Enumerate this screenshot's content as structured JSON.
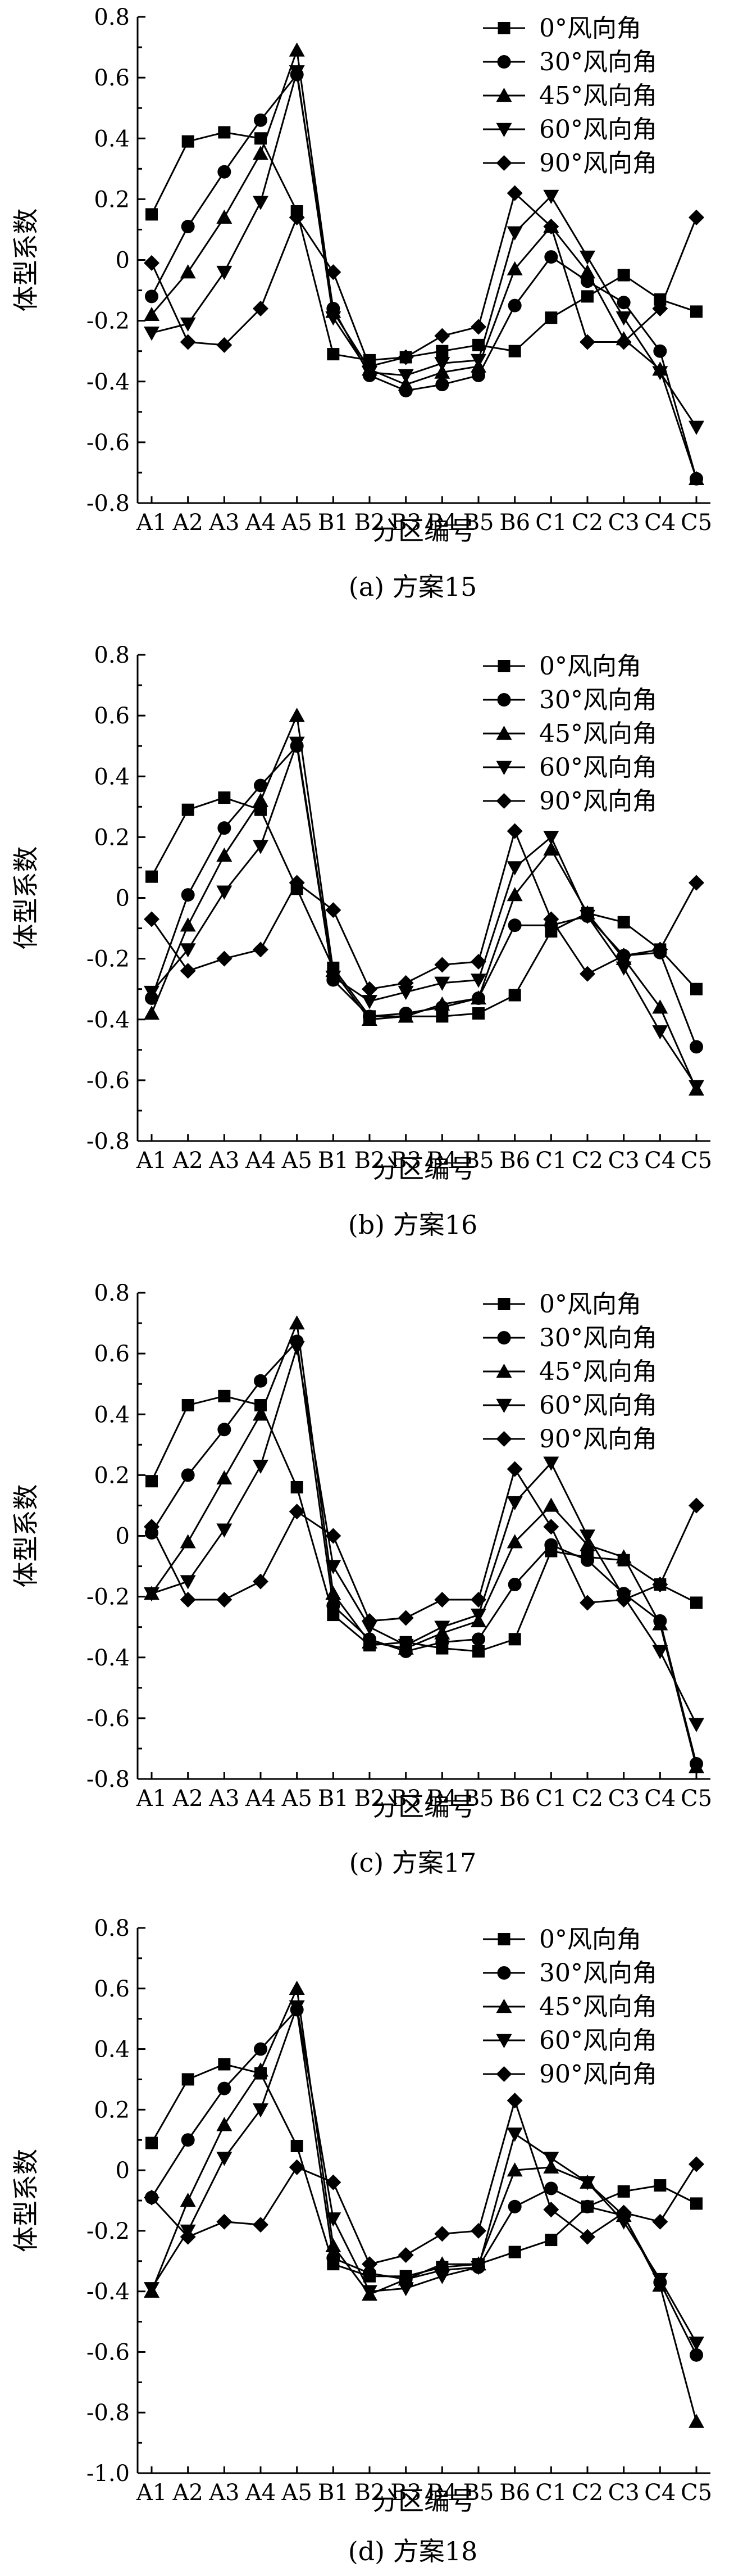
{
  "chart_data": [
    {
      "type": "line",
      "caption": "(a) 方案15",
      "xlabel": "分区编号",
      "ylabel": "体型系数",
      "ylim": [
        -0.8,
        0.8
      ],
      "yticks": [
        "0.8",
        "0.6",
        "0.4",
        "0.2",
        "0",
        "-0.2",
        "-0.4",
        "-0.6",
        "-0.8"
      ],
      "categories": [
        "A1",
        "A2",
        "A3",
        "A4",
        "A5",
        "B1",
        "B2",
        "B3",
        "B4",
        "B5",
        "B6",
        "C1",
        "C2",
        "C3",
        "C4",
        "C5"
      ],
      "legend_position": "top-right",
      "series": [
        {
          "name": "0°风向角",
          "marker": "square",
          "values": [
            0.15,
            0.39,
            0.42,
            0.4,
            0.16,
            -0.31,
            -0.33,
            -0.32,
            -0.3,
            -0.28,
            -0.3,
            -0.19,
            -0.12,
            -0.05,
            -0.13,
            -0.17
          ]
        },
        {
          "name": "30°风向角",
          "marker": "circle",
          "values": [
            -0.12,
            0.11,
            0.29,
            0.46,
            0.61,
            -0.16,
            -0.38,
            -0.43,
            -0.41,
            -0.38,
            -0.15,
            0.01,
            -0.07,
            -0.14,
            -0.3,
            -0.72
          ]
        },
        {
          "name": "45°风向角",
          "marker": "triangle-up",
          "values": [
            -0.18,
            -0.04,
            0.14,
            0.35,
            0.69,
            -0.17,
            -0.36,
            -0.41,
            -0.37,
            -0.35,
            -0.03,
            0.11,
            -0.04,
            -0.26,
            -0.36,
            -0.72
          ]
        },
        {
          "name": "60°风向角",
          "marker": "triangle-down",
          "values": [
            -0.24,
            -0.21,
            -0.04,
            0.19,
            0.62,
            -0.19,
            -0.37,
            -0.38,
            -0.34,
            -0.33,
            0.09,
            0.21,
            0.01,
            -0.19,
            -0.37,
            -0.55
          ]
        },
        {
          "name": "90°风向角",
          "marker": "diamond",
          "values": [
            -0.01,
            -0.27,
            -0.28,
            -0.16,
            0.14,
            -0.04,
            -0.35,
            -0.32,
            -0.25,
            -0.22,
            0.22,
            0.11,
            -0.27,
            -0.27,
            -0.16,
            0.14
          ]
        }
      ]
    },
    {
      "type": "line",
      "caption": "(b) 方案16",
      "xlabel": "分区编号",
      "ylabel": "体型系数",
      "ylim": [
        -0.8,
        0.8
      ],
      "yticks": [
        "0.8",
        "0.6",
        "0.4",
        "0.2",
        "0",
        "-0.2",
        "-0.4",
        "-0.6",
        "-0.8"
      ],
      "categories": [
        "A1",
        "A2",
        "A3",
        "A4",
        "A5",
        "B1",
        "B2",
        "B3",
        "B4",
        "B5",
        "B6",
        "C1",
        "C2",
        "C3",
        "C4",
        "C5"
      ],
      "legend_position": "top-right",
      "series": [
        {
          "name": "0°风向角",
          "marker": "square",
          "values": [
            0.07,
            0.29,
            0.33,
            0.29,
            0.03,
            -0.23,
            -0.39,
            -0.39,
            -0.39,
            -0.38,
            -0.32,
            -0.11,
            -0.05,
            -0.08,
            -0.17,
            -0.3
          ]
        },
        {
          "name": "30°风向角",
          "marker": "circle",
          "values": [
            -0.33,
            0.01,
            0.23,
            0.37,
            0.5,
            -0.27,
            -0.39,
            -0.38,
            -0.36,
            -0.33,
            -0.09,
            -0.09,
            -0.06,
            -0.19,
            -0.18,
            -0.49
          ]
        },
        {
          "name": "45°风向角",
          "marker": "triangle-up",
          "values": [
            -0.38,
            -0.09,
            0.14,
            0.32,
            0.6,
            -0.24,
            -0.4,
            -0.39,
            -0.35,
            -0.33,
            0.01,
            0.16,
            -0.05,
            -0.2,
            -0.36,
            -0.63
          ]
        },
        {
          "name": "60°风向角",
          "marker": "triangle-down",
          "values": [
            -0.31,
            -0.17,
            0.02,
            0.17,
            0.51,
            -0.26,
            -0.34,
            -0.31,
            -0.28,
            -0.27,
            0.1,
            0.2,
            -0.06,
            -0.23,
            -0.44,
            -0.62
          ]
        },
        {
          "name": "90°风向角",
          "marker": "diamond",
          "values": [
            -0.07,
            -0.24,
            -0.2,
            -0.17,
            0.05,
            -0.04,
            -0.3,
            -0.28,
            -0.22,
            -0.21,
            0.22,
            -0.07,
            -0.25,
            -0.19,
            -0.17,
            0.05
          ]
        }
      ]
    },
    {
      "type": "line",
      "caption": "(c) 方案17",
      "xlabel": "分区编号",
      "ylabel": "体型系数",
      "ylim": [
        -0.8,
        0.8
      ],
      "yticks": [
        "0.8",
        "0.6",
        "0.4",
        "0.2",
        "0",
        "-0.2",
        "-0.4",
        "-0.6",
        "-0.8"
      ],
      "categories": [
        "A1",
        "A2",
        "A3",
        "A4",
        "A5",
        "B1",
        "B2",
        "B3",
        "B4",
        "B5",
        "B6",
        "C1",
        "C2",
        "C3",
        "C4",
        "C5"
      ],
      "legend_position": "top-right",
      "series": [
        {
          "name": "0°风向角",
          "marker": "square",
          "values": [
            0.18,
            0.43,
            0.46,
            0.43,
            0.16,
            -0.26,
            -0.36,
            -0.35,
            -0.37,
            -0.38,
            -0.34,
            -0.05,
            -0.07,
            -0.08,
            -0.16,
            -0.22
          ]
        },
        {
          "name": "30°风向角",
          "marker": "circle",
          "values": [
            0.01,
            0.2,
            0.35,
            0.51,
            0.64,
            -0.23,
            -0.34,
            -0.38,
            -0.35,
            -0.34,
            -0.16,
            -0.03,
            -0.08,
            -0.19,
            -0.28,
            -0.75
          ]
        },
        {
          "name": "45°风向角",
          "marker": "triangle-up",
          "values": [
            -0.19,
            -0.02,
            0.19,
            0.4,
            0.7,
            -0.19,
            -0.35,
            -0.37,
            -0.32,
            -0.28,
            -0.02,
            0.1,
            -0.03,
            -0.07,
            -0.29,
            -0.76
          ]
        },
        {
          "name": "60°风向角",
          "marker": "triangle-down",
          "values": [
            -0.19,
            -0.15,
            0.02,
            0.23,
            0.62,
            -0.1,
            -0.3,
            -0.36,
            -0.3,
            -0.26,
            0.11,
            0.24,
            0.0,
            -0.2,
            -0.38,
            -0.62
          ]
        },
        {
          "name": "90°风向角",
          "marker": "diamond",
          "values": [
            0.03,
            -0.21,
            -0.21,
            -0.15,
            0.08,
            0.0,
            -0.28,
            -0.27,
            -0.21,
            -0.21,
            0.22,
            0.03,
            -0.22,
            -0.21,
            -0.16,
            0.1
          ]
        }
      ]
    },
    {
      "type": "line",
      "caption": "(d) 方案18",
      "xlabel": "分区编号",
      "ylabel": "体型系数",
      "ylim": [
        -1.0,
        0.8
      ],
      "yticks": [
        "0.8",
        "0.6",
        "0.4",
        "0.2",
        "0",
        "-0.2",
        "-0.4",
        "-0.6",
        "-0.8",
        "-1.0"
      ],
      "categories": [
        "A1",
        "A2",
        "A3",
        "A4",
        "A5",
        "B1",
        "B2",
        "B3",
        "B4",
        "B5",
        "B6",
        "C1",
        "C2",
        "C3",
        "C4",
        "C5"
      ],
      "legend_position": "top-right",
      "series": [
        {
          "name": "0°风向角",
          "marker": "square",
          "values": [
            0.09,
            0.3,
            0.35,
            0.32,
            0.08,
            -0.31,
            -0.35,
            -0.35,
            -0.32,
            -0.31,
            -0.27,
            -0.23,
            -0.12,
            -0.07,
            -0.05,
            -0.11
          ]
        },
        {
          "name": "30°风向角",
          "marker": "circle",
          "values": [
            -0.09,
            0.1,
            0.27,
            0.4,
            0.53,
            -0.29,
            -0.34,
            -0.36,
            -0.33,
            -0.32,
            -0.12,
            -0.06,
            -0.12,
            -0.15,
            -0.37,
            -0.61
          ]
        },
        {
          "name": "45°风向角",
          "marker": "triangle-up",
          "values": [
            -0.4,
            -0.1,
            0.15,
            0.33,
            0.6,
            -0.25,
            -0.41,
            -0.36,
            -0.31,
            -0.31,
            0.0,
            0.01,
            -0.04,
            -0.15,
            -0.38,
            -0.83
          ]
        },
        {
          "name": "60°风向角",
          "marker": "triangle-down",
          "values": [
            -0.39,
            -0.2,
            0.04,
            0.2,
            0.54,
            -0.16,
            -0.4,
            -0.39,
            -0.35,
            -0.32,
            0.12,
            0.04,
            -0.04,
            -0.17,
            -0.36,
            -0.57
          ]
        },
        {
          "name": "90°风向角",
          "marker": "diamond",
          "values": [
            -0.09,
            -0.22,
            -0.17,
            -0.18,
            0.01,
            -0.04,
            -0.31,
            -0.28,
            -0.21,
            -0.2,
            0.23,
            -0.13,
            -0.22,
            -0.14,
            -0.17,
            0.02
          ]
        }
      ]
    }
  ]
}
